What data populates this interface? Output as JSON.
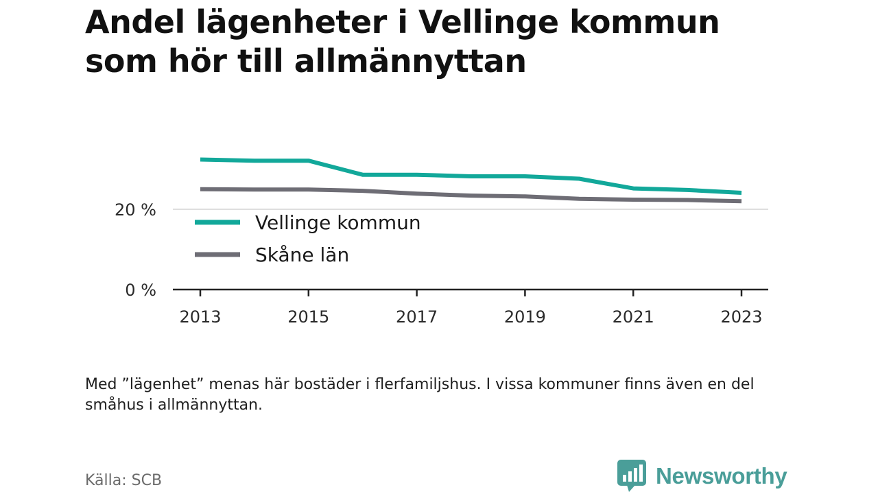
{
  "title": "Andel lägenheter i Vellinge kommun som hör till allmännyttan",
  "note": "Med ”lägenhet” menas här bostäder i flerfamiljshus. I vissa kommuner finns även en del småhus i allmännyttan.",
  "source": "Källa: SCB",
  "brand": {
    "name": "Newsworthy",
    "icon": "newsworthy-logo-icon",
    "color": "#4a9e99"
  },
  "chart_data": {
    "type": "line",
    "title": "Andel lägenheter i Vellinge kommun som hör till allmännyttan",
    "xlabel": "",
    "ylabel": "",
    "x": [
      2013,
      2014,
      2015,
      2016,
      2017,
      2018,
      2019,
      2020,
      2021,
      2022,
      2023
    ],
    "x_ticks": [
      "2013",
      "2015",
      "2017",
      "2019",
      "2021",
      "2023"
    ],
    "y_ticks": [
      {
        "value": 0,
        "label": "0 %"
      },
      {
        "value": 20,
        "label": "20 %"
      }
    ],
    "ylim": [
      0,
      35
    ],
    "grid": "horizontal",
    "legend": "inside-left",
    "series": [
      {
        "name": "Vellinge kommun",
        "color": "#12a89a",
        "values": [
          32.4,
          32.1,
          32.1,
          28.6,
          28.6,
          28.2,
          28.2,
          27.6,
          25.2,
          24.8,
          24.1
        ]
      },
      {
        "name": "Skåne län",
        "color": "#6e6d75",
        "values": [
          25.0,
          24.9,
          24.9,
          24.6,
          23.9,
          23.4,
          23.2,
          22.6,
          22.4,
          22.3,
          22.0
        ]
      }
    ]
  }
}
